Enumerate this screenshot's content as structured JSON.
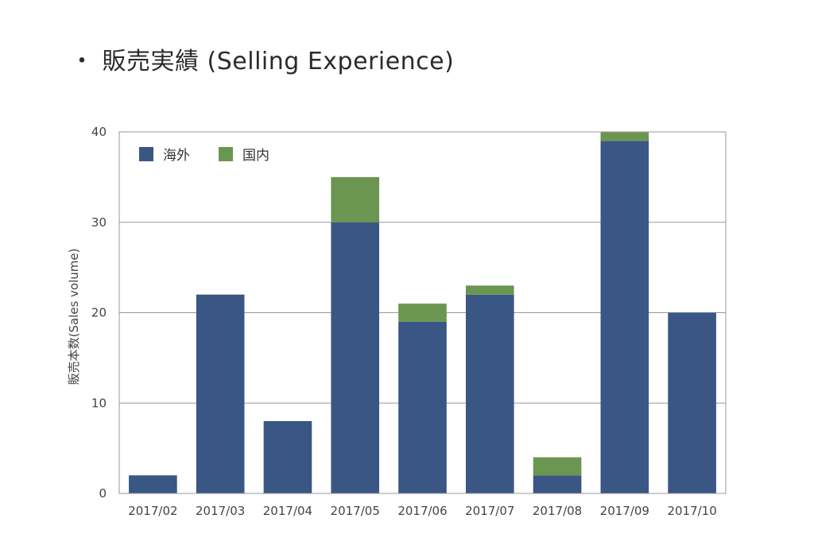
{
  "title": {
    "bullet": "・",
    "text": "販売実績 (Selling Experience)"
  },
  "chart_data": {
    "type": "bar",
    "stacked": true,
    "categories": [
      "2017/02",
      "2017/03",
      "2017/04",
      "2017/05",
      "2017/06",
      "2017/07",
      "2017/08",
      "2017/09",
      "2017/10"
    ],
    "series": [
      {
        "name": "海外",
        "color": "#3a5685",
        "values": [
          2,
          22,
          8,
          30,
          19,
          22,
          2,
          39,
          20
        ]
      },
      {
        "name": "国内",
        "color": "#6a9652",
        "values": [
          0,
          0,
          0,
          5,
          2,
          1,
          2,
          1,
          0
        ]
      }
    ],
    "ylabel": "販売本数(Sales volume)",
    "xlabel": "",
    "ylim": [
      0,
      40
    ],
    "yticks": [
      0,
      10,
      20,
      30,
      40
    ],
    "grid": true,
    "legend_position": "top-left"
  }
}
